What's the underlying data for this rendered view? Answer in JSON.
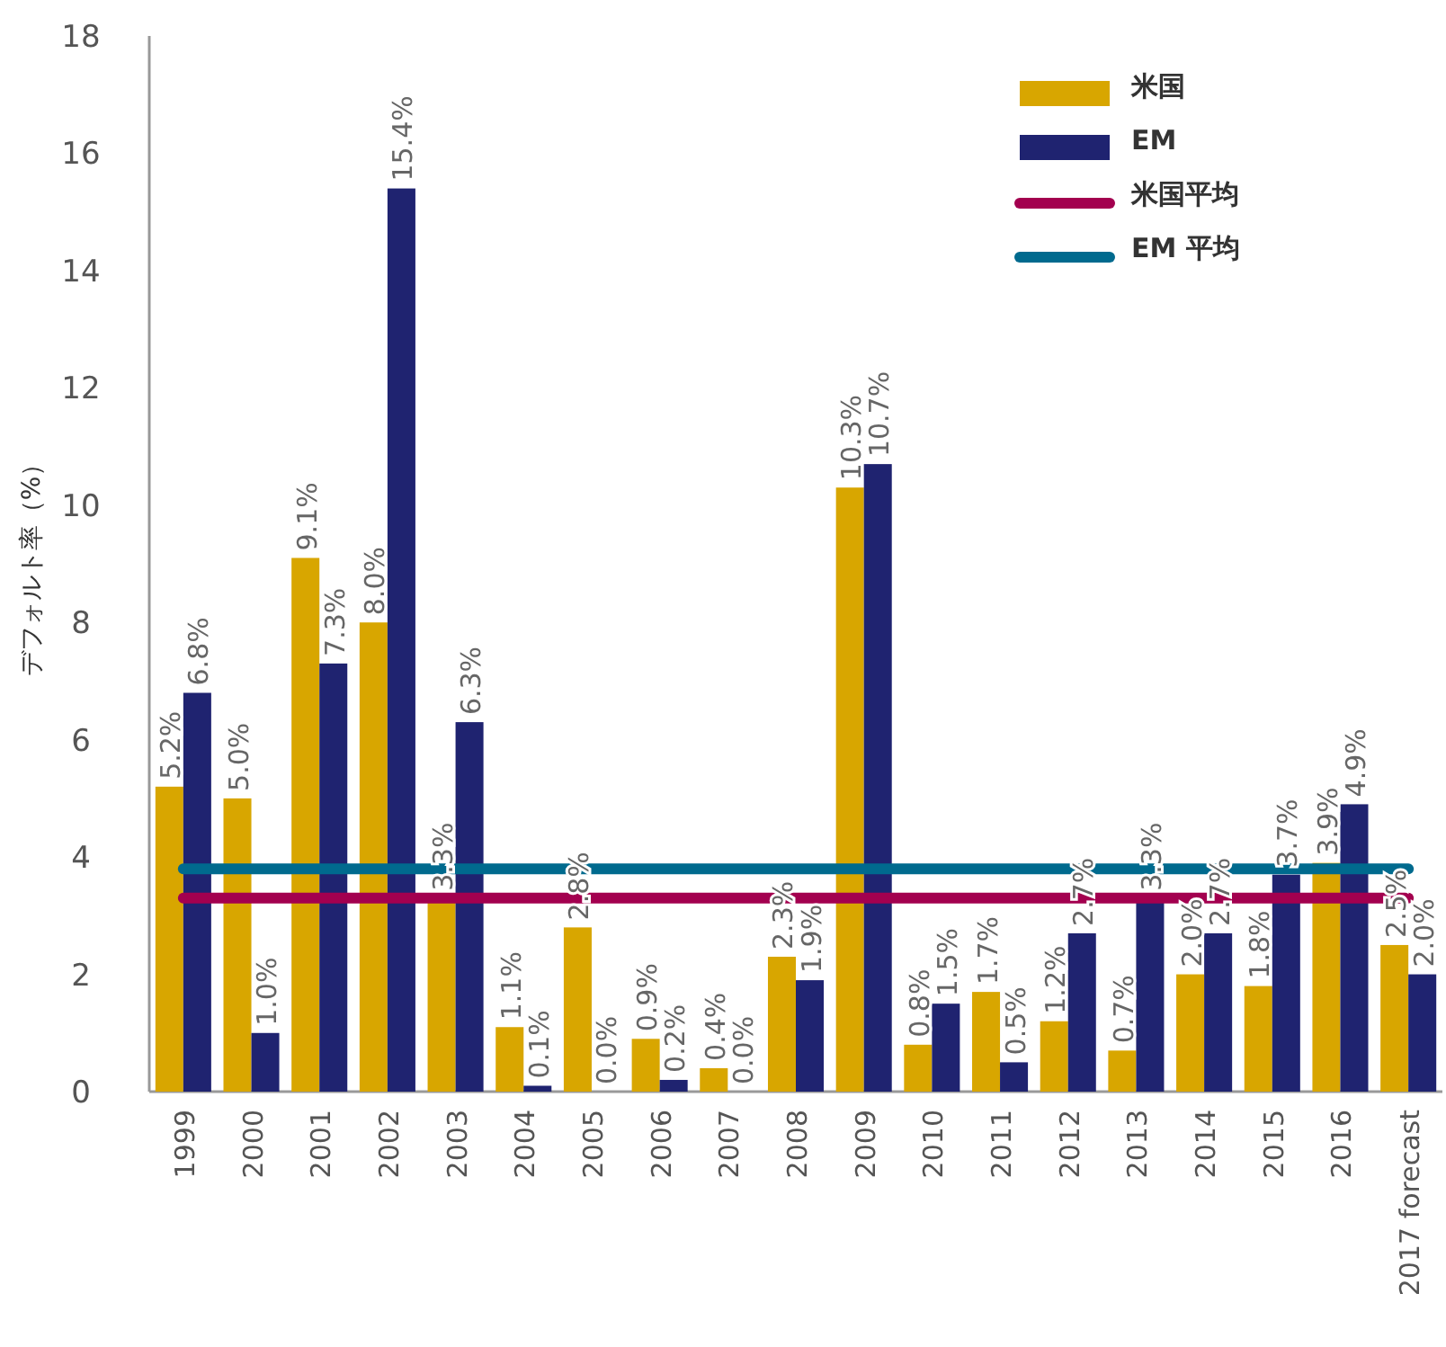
{
  "chart_data": {
    "type": "bar",
    "ylabel": "デフォルト率（%）",
    "categories": [
      "1999",
      "2000",
      "2001",
      "2002",
      "2003",
      "2004",
      "2005",
      "2006",
      "2007",
      "2008",
      "2009",
      "2010",
      "2011",
      "2012",
      "2013",
      "2014",
      "2015",
      "2016",
      "2017 forecast"
    ],
    "series": [
      {
        "name": "米国",
        "color": "#d8a600",
        "values": [
          5.2,
          5.0,
          9.1,
          8.0,
          3.3,
          1.1,
          2.8,
          0.9,
          0.4,
          2.3,
          10.3,
          0.8,
          1.7,
          1.2,
          0.7,
          2.0,
          1.8,
          3.9,
          2.5
        ],
        "value_labels": [
          "5.2%",
          "5.0%",
          "9.1%",
          "8.0%",
          "3.3%",
          "1.1%",
          "2.8%",
          "0.9%",
          "0.4%",
          "2.3%",
          "10.3%",
          "0.8%",
          "1.7%",
          "1.2%",
          "0.7%",
          "2.0%",
          "1.8%",
          "3.9%",
          "2.5%"
        ]
      },
      {
        "name": "EM",
        "color": "#1f2370",
        "values": [
          6.8,
          1.0,
          7.3,
          15.4,
          6.3,
          0.1,
          0.0,
          0.2,
          0.0,
          1.9,
          10.7,
          1.5,
          0.5,
          2.7,
          3.3,
          2.7,
          3.7,
          4.9,
          2.0
        ],
        "value_labels": [
          "6.8%",
          "1.0%",
          "7.3%",
          "15.4%",
          "6.3%",
          "0.1%",
          "0.0%",
          "0.2%",
          "0.0%",
          "1.9%",
          "10.7%",
          "1.5%",
          "0.5%",
          "2.7%",
          "3.3%",
          "2.7%",
          "3.7%",
          "4.9%",
          "2.0%"
        ]
      },
      {
        "name": "米国平均",
        "type": "line",
        "color": "#a3004f",
        "values": [
          3.3,
          3.3,
          3.3,
          3.3,
          3.3,
          3.3,
          3.3,
          3.3,
          3.3,
          3.3,
          3.3,
          3.3,
          3.3,
          3.3,
          3.3,
          3.3,
          3.3,
          3.3,
          3.3
        ]
      },
      {
        "name": "EM 平均",
        "type": "line",
        "color": "#006a8e",
        "values": [
          3.8,
          3.8,
          3.8,
          3.8,
          3.8,
          3.8,
          3.8,
          3.8,
          3.8,
          3.8,
          3.8,
          3.8,
          3.8,
          3.8,
          3.8,
          3.8,
          3.8,
          3.8,
          3.8
        ]
      }
    ],
    "ylim": [
      0,
      18
    ],
    "yticks": [
      0,
      2,
      4,
      6,
      8,
      10,
      12,
      14,
      16,
      18
    ],
    "grid": false,
    "legend": "top right"
  }
}
